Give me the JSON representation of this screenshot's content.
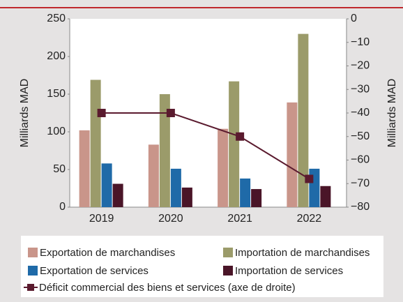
{
  "chart_data": {
    "type": "bar",
    "categories": [
      "2019",
      "2020",
      "2021",
      "2022"
    ],
    "series": [
      {
        "name": "Exportation de marchandises",
        "color": "#c9958a",
        "values": [
          102,
          83,
          104,
          139
        ]
      },
      {
        "name": "Importation de marchandises",
        "color": "#9b9b6a",
        "values": [
          169,
          150,
          167,
          230
        ]
      },
      {
        "name": "Exportation de services",
        "color": "#1f6aa8",
        "values": [
          58,
          51,
          38,
          51
        ]
      },
      {
        "name": "Importation de services",
        "color": "#4a1528",
        "values": [
          31,
          26,
          24,
          28
        ]
      },
      {
        "name": "Déficit commercial des biens et services (axe de droite)",
        "color": "#5a1a2e",
        "values": [
          -40,
          -40,
          -50,
          -68
        ],
        "axis": "y2",
        "type": "line"
      }
    ],
    "ylabel": "Milliards MAD",
    "y2label": "Milliards MAD",
    "ylim": [
      0,
      250
    ],
    "yticks": [
      0,
      50,
      100,
      150,
      200,
      250
    ],
    "y2lim": [
      -80,
      0
    ],
    "y2ticks": [
      0,
      {
        "value": -10,
        "label": "−10"
      },
      {
        "value": -20,
        "label": "−20"
      },
      {
        "value": -30,
        "label": "−30"
      },
      {
        "value": -40,
        "label": "−40"
      },
      {
        "value": -50,
        "label": "−50"
      },
      {
        "value": -60,
        "label": "−60"
      },
      {
        "value": -70,
        "label": "−70"
      },
      {
        "value": -80,
        "label": "−80"
      }
    ]
  }
}
